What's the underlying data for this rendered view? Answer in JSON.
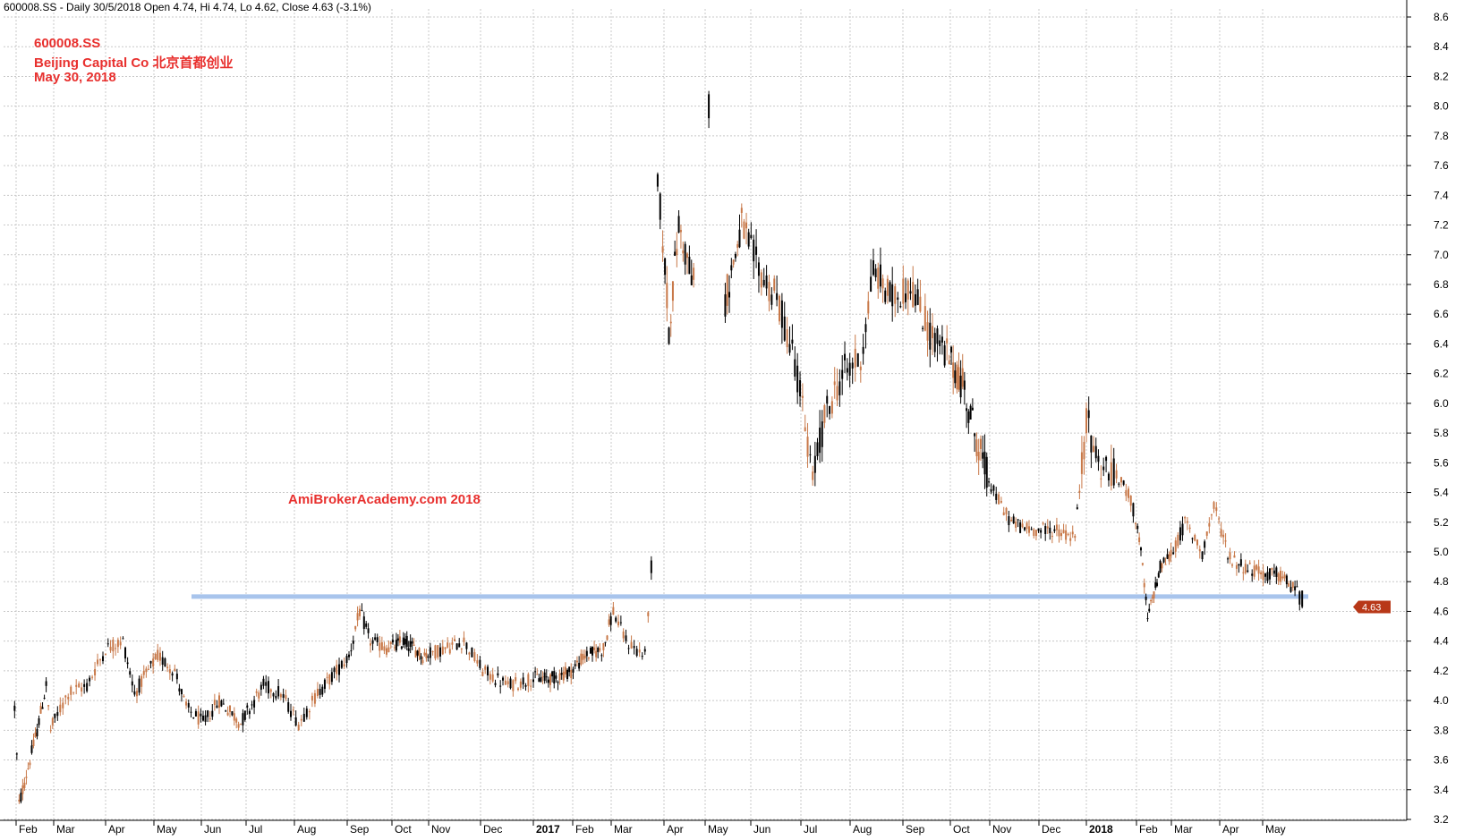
{
  "header": {
    "text": "600008.SS - Daily 30/5/2018 Open 4.74, Hi 4.74, Lo 4.62, Close 4.63 (-3.1%)"
  },
  "info": {
    "symbol": "600008.SS",
    "company": "Beijing Capital Co   北京首都创业",
    "date": "May 30, 2018"
  },
  "watermark": "AmiBrokerAcademy.com   2018",
  "colors": {
    "up": "#c87848",
    "down": "#000000",
    "support": "#a8c4ec",
    "grid": "#c8c8c8",
    "label_text": "#e8302e",
    "price_tag": "#b83818"
  },
  "chart_data": {
    "type": "candlestick",
    "title": "",
    "xlabel": "",
    "ylabel": "",
    "ylim": [
      3.2,
      8.7
    ],
    "y_ticks": [
      3.2,
      3.4,
      3.6,
      3.8,
      4.0,
      4.2,
      4.4,
      4.6,
      4.8,
      5.0,
      5.2,
      5.4,
      5.6,
      5.8,
      6.0,
      6.2,
      6.4,
      6.6,
      6.8,
      7.0,
      7.2,
      7.4,
      7.6,
      7.8,
      8.0,
      8.2,
      8.4,
      8.6
    ],
    "x_ticks": [
      {
        "label": "Feb",
        "bold": false
      },
      {
        "label": "Mar",
        "bold": false
      },
      {
        "label": "Apr",
        "bold": false
      },
      {
        "label": "May",
        "bold": false
      },
      {
        "label": "Jun",
        "bold": false
      },
      {
        "label": "Jul",
        "bold": false
      },
      {
        "label": "Aug",
        "bold": false
      },
      {
        "label": "Sep",
        "bold": false
      },
      {
        "label": "Oct",
        "bold": false
      },
      {
        "label": "Nov",
        "bold": false
      },
      {
        "label": "Dec",
        "bold": false
      },
      {
        "label": "2017",
        "bold": true
      },
      {
        "label": "Feb",
        "bold": false
      },
      {
        "label": "Mar",
        "bold": false
      },
      {
        "label": "Apr",
        "bold": false
      },
      {
        "label": "May",
        "bold": false
      },
      {
        "label": "Jun",
        "bold": false
      },
      {
        "label": "Jul",
        "bold": false
      },
      {
        "label": "Aug",
        "bold": false
      },
      {
        "label": "Sep",
        "bold": false
      },
      {
        "label": "Oct",
        "bold": false
      },
      {
        "label": "Nov",
        "bold": false
      },
      {
        "label": "Dec",
        "bold": false
      },
      {
        "label": "2018",
        "bold": true
      },
      {
        "label": "Feb",
        "bold": false
      },
      {
        "label": "Mar",
        "bold": false
      },
      {
        "label": "Apr",
        "bold": false
      },
      {
        "label": "May",
        "bold": false
      }
    ],
    "grid": true,
    "support_level": 4.7,
    "last_close": 4.63,
    "last_close_label": "4.63",
    "open": 4.74,
    "high": 4.74,
    "low": 4.62,
    "close": 4.63,
    "price_path": [
      [
        2016.08,
        3.95
      ],
      [
        2016.09,
        3.3
      ],
      [
        2016.11,
        3.55
      ],
      [
        2016.13,
        3.8
      ],
      [
        2016.15,
        4.1
      ],
      [
        2016.16,
        3.8
      ],
      [
        2016.19,
        4.05
      ],
      [
        2016.22,
        4.1
      ],
      [
        2016.25,
        4.35
      ],
      [
        2016.28,
        4.4
      ],
      [
        2016.3,
        4.05
      ],
      [
        2016.34,
        4.3
      ],
      [
        2016.37,
        4.2
      ],
      [
        2016.39,
        3.95
      ],
      [
        2016.42,
        3.85
      ],
      [
        2016.45,
        4.0
      ],
      [
        2016.49,
        3.85
      ],
      [
        2016.53,
        4.1
      ],
      [
        2016.56,
        4.05
      ],
      [
        2016.59,
        3.85
      ],
      [
        2016.62,
        4.05
      ],
      [
        2016.65,
        4.2
      ],
      [
        2016.67,
        4.3
      ],
      [
        2016.69,
        4.6
      ],
      [
        2016.71,
        4.4
      ],
      [
        2016.74,
        4.35
      ],
      [
        2016.78,
        4.4
      ],
      [
        2016.82,
        4.3
      ],
      [
        2016.86,
        4.35
      ],
      [
        2016.89,
        4.4
      ],
      [
        2016.92,
        4.2
      ],
      [
        2016.96,
        4.1
      ],
      [
        2017.0,
        4.15
      ],
      [
        2017.04,
        4.15
      ],
      [
        2017.08,
        4.2
      ],
      [
        2017.11,
        4.3
      ],
      [
        2017.15,
        4.35
      ],
      [
        2017.17,
        4.6
      ],
      [
        2017.19,
        4.4
      ],
      [
        2017.22,
        4.3
      ],
      [
        2017.23,
        4.9
      ],
      [
        2017.24,
        7.5
      ],
      [
        2017.26,
        6.5
      ],
      [
        2017.28,
        7.2
      ],
      [
        2017.31,
        6.8
      ],
      [
        2017.34,
        8.0
      ],
      [
        2017.37,
        6.7
      ],
      [
        2017.4,
        7.2
      ],
      [
        2017.43,
        6.9
      ],
      [
        2017.46,
        6.7
      ],
      [
        2017.49,
        6.3
      ],
      [
        2017.52,
        5.5
      ],
      [
        2017.54,
        5.9
      ],
      [
        2017.57,
        6.2
      ],
      [
        2017.6,
        6.3
      ],
      [
        2017.62,
        6.9
      ],
      [
        2017.65,
        6.7
      ],
      [
        2017.68,
        6.8
      ],
      [
        2017.71,
        6.5
      ],
      [
        2017.74,
        6.35
      ],
      [
        2017.78,
        6.1
      ],
      [
        2017.81,
        5.7
      ],
      [
        2017.84,
        5.4
      ],
      [
        2017.87,
        5.2
      ],
      [
        2017.9,
        5.15
      ],
      [
        2017.94,
        5.15
      ],
      [
        2017.98,
        5.1
      ],
      [
        2018.0,
        5.9
      ],
      [
        2018.02,
        5.6
      ],
      [
        2018.05,
        5.5
      ],
      [
        2018.07,
        5.4
      ],
      [
        2018.09,
        5.1
      ],
      [
        2018.11,
        4.55
      ],
      [
        2018.14,
        4.9
      ],
      [
        2018.17,
        5.0
      ],
      [
        2018.19,
        5.2
      ],
      [
        2018.22,
        5.0
      ],
      [
        2018.24,
        5.3
      ],
      [
        2018.27,
        4.95
      ],
      [
        2018.3,
        4.9
      ],
      [
        2018.33,
        4.85
      ],
      [
        2018.36,
        4.85
      ],
      [
        2018.38,
        4.8
      ],
      [
        2018.4,
        4.74
      ],
      [
        2018.41,
        4.63
      ]
    ]
  }
}
